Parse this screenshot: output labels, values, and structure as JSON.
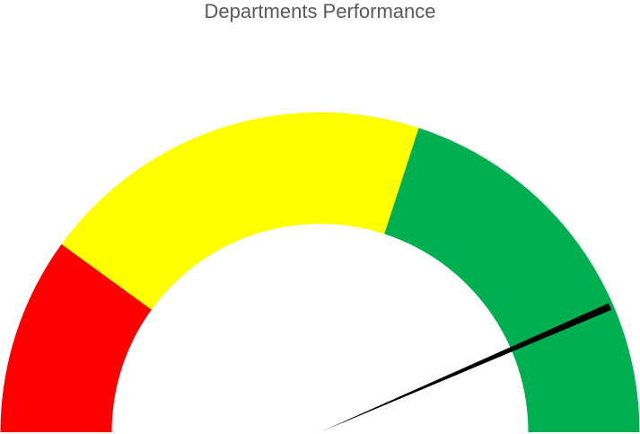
{
  "chart_data": {
    "type": "gauge",
    "title": "Departments Performance",
    "range": [
      0,
      100
    ],
    "bands": [
      {
        "from": 0,
        "to": 20,
        "color": "#FF0000"
      },
      {
        "from": 20,
        "to": 60,
        "color": "#FFFF00"
      },
      {
        "from": 60,
        "to": 100,
        "color": "#00B050"
      }
    ],
    "needle": {
      "value": 87,
      "color": "#000000"
    },
    "legend": "none",
    "grid": false
  }
}
